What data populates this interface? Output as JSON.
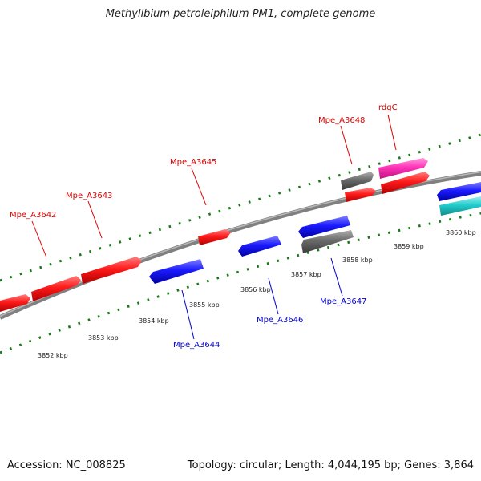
{
  "title": "Methylibium petroleiphilum PM1, complete genome",
  "accession": "Accession: NC_008825",
  "summary": "Topology: circular; Length: 4,044,195 bp; Genes: 3,864",
  "colors": {
    "forward_gene": "#ff1a1a",
    "reverse_gene": "#1a1aff",
    "grey_gene": "#6a6a6a",
    "pink_gene": "#ff33b8",
    "cyan_gene": "#22cccc",
    "backbone": "#808080",
    "tick": "#1a7a1a",
    "forward_label": "#dd0000",
    "reverse_label": "#0000cc"
  },
  "scale_labels": [
    "3852 kbp",
    "3853 kbp",
    "3854 kbp",
    "3855 kbp",
    "3856 kbp",
    "3857 kbp",
    "3858 kbp",
    "3859 kbp",
    "3860 kbp"
  ],
  "forward_labels": [
    "Mpe_A3642",
    "Mpe_A3643",
    "Mpe_A3645",
    "Mpe_A3648",
    "rdgC"
  ],
  "reverse_labels": [
    "Mpe_A3644",
    "Mpe_A3646",
    "Mpe_A3647"
  ]
}
